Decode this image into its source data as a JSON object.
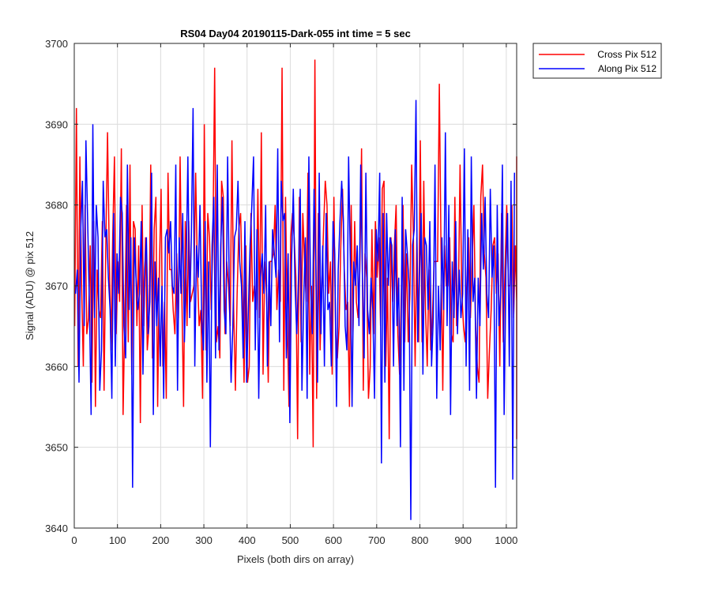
{
  "chart_data": {
    "type": "line",
    "title": "RS04 Day04 20190115-Dark-055 int time = 5 sec",
    "xlabel": "Pixels (both dirs on array)",
    "ylabel": "Signal (ADU) @ pix 512",
    "xlim": [
      0,
      1024
    ],
    "ylim": [
      3640,
      3700
    ],
    "xticks": [
      0,
      100,
      200,
      300,
      400,
      500,
      600,
      700,
      800,
      900,
      1000
    ],
    "yticks": [
      3640,
      3650,
      3660,
      3670,
      3680,
      3690,
      3700
    ],
    "grid": true,
    "legend_position": "outside-top-right",
    "series": [
      {
        "name": "Cross Pix 512",
        "color": "#ff0000",
        "x_start": 1,
        "x_step": 4,
        "values": [
          3665,
          3692,
          3660,
          3686,
          3670,
          3660,
          3680,
          3664,
          3666,
          3675,
          3658,
          3678,
          3655,
          3672,
          3667,
          3666,
          3678,
          3657,
          3675,
          3689,
          3674,
          3662,
          3676,
          3686,
          3664,
          3673,
          3668,
          3687,
          3654,
          3666,
          3680,
          3663,
          3685,
          3659,
          3678,
          3677,
          3665,
          3675,
          3653,
          3680,
          3665,
          3676,
          3662,
          3665,
          3685,
          3661,
          3677,
          3681,
          3655,
          3672,
          3682,
          3660,
          3668,
          3656,
          3684,
          3672,
          3672,
          3667,
          3664,
          3674,
          3666,
          3686,
          3669,
          3655,
          3678,
          3665,
          3678,
          3668,
          3669,
          3670,
          3684,
          3672,
          3665,
          3667,
          3656,
          3690,
          3662,
          3679,
          3676,
          3667,
          3676,
          3697,
          3663,
          3665,
          3661,
          3683,
          3681,
          3664,
          3673,
          3670,
          3665,
          3688,
          3667,
          3657,
          3669,
          3677,
          3679,
          3670,
          3658,
          3675,
          3658,
          3660,
          3679,
          3668,
          3670,
          3667,
          3682,
          3666,
          3689,
          3659,
          3673,
          3669,
          3658,
          3673,
          3673,
          3674,
          3680,
          3667,
          3672,
          3668,
          3697,
          3657,
          3681,
          3666,
          3655,
          3676,
          3679,
          3676,
          3671,
          3651,
          3681,
          3663,
          3679,
          3673,
          3668,
          3684,
          3659,
          3670,
          3650,
          3698,
          3656,
          3679,
          3662,
          3670,
          3677,
          3683,
          3680,
          3669,
          3673,
          3659,
          3681,
          3664,
          3661,
          3665,
          3675,
          3682,
          3672,
          3667,
          3668,
          3655,
          3680,
          3664,
          3678,
          3668,
          3666,
          3672,
          3687,
          3657,
          3674,
          3671,
          3656,
          3660,
          3677,
          3664,
          3678,
          3671,
          3676,
          3665,
          3682,
          3683,
          3660,
          3671,
          3651,
          3676,
          3668,
          3675,
          3680,
          3664,
          3659,
          3669,
          3680,
          3663,
          3674,
          3663,
          3669,
          3685,
          3676,
          3660,
          3676,
          3663,
          3688,
          3663,
          3683,
          3667,
          3660,
          3672,
          3662,
          3666,
          3673,
          3673,
          3673,
          3695,
          3674,
          3657,
          3675,
          3670,
          3670,
          3676,
          3664,
          3663,
          3681,
          3665,
          3668,
          3685,
          3669,
          3665,
          3663,
          3671,
          3676,
          3666,
          3673,
          3680,
          3665,
          3660,
          3658,
          3681,
          3685,
          3674,
          3671,
          3656,
          3662,
          3667,
          3675,
          3676,
          3669,
          3674,
          3660,
          3679,
          3663,
          3672,
          3680,
          3670,
          3670,
          3680,
          3666,
          3675,
          3668,
          3668,
          3680,
          3670,
          3667,
          3651,
          3671,
          3682,
          3666,
          3680,
          3677,
          3686,
          3657,
          3679,
          3662,
          3683,
          3655,
          3681,
          3654,
          3680,
          3672,
          3659,
          3686,
          3676,
          3685
        ]
      },
      {
        "name": "Along Pix 512",
        "color": "#0000ff",
        "x_start": 3,
        "x_step": 4,
        "values": [
          3669,
          3672,
          3658,
          3677,
          3683,
          3665,
          3688,
          3678,
          3668,
          3654,
          3690,
          3666,
          3680,
          3676,
          3657,
          3662,
          3683,
          3676,
          3677,
          3671,
          3667,
          3656,
          3679,
          3660,
          3674,
          3669,
          3681,
          3679,
          3665,
          3661,
          3685,
          3667,
          3676,
          3645,
          3676,
          3671,
          3667,
          3669,
          3678,
          3659,
          3672,
          3676,
          3664,
          3668,
          3684,
          3654,
          3673,
          3665,
          3671,
          3660,
          3670,
          3656,
          3676,
          3677,
          3674,
          3678,
          3670,
          3669,
          3685,
          3657,
          3676,
          3669,
          3679,
          3663,
          3672,
          3686,
          3666,
          3676,
          3692,
          3660,
          3675,
          3671,
          3680,
          3666,
          3662,
          3678,
          3658,
          3673,
          3650,
          3675,
          3681,
          3661,
          3685,
          3662,
          3675,
          3681,
          3667,
          3664,
          3686,
          3669,
          3658,
          3665,
          3676,
          3677,
          3683,
          3673,
          3670,
          3661,
          3678,
          3658,
          3667,
          3675,
          3680,
          3686,
          3662,
          3677,
          3656,
          3671,
          3674,
          3669,
          3680,
          3660,
          3673,
          3665,
          3677,
          3674,
          3671,
          3687,
          3663,
          3683,
          3678,
          3679,
          3661,
          3674,
          3653,
          3673,
          3682,
          3670,
          3664,
          3671,
          3682,
          3657,
          3668,
          3676,
          3656,
          3686,
          3670,
          3664,
          3682,
          3673,
          3658,
          3684,
          3664,
          3675,
          3660,
          3679,
          3667,
          3668,
          3660,
          3678,
          3674,
          3655,
          3672,
          3678,
          3683,
          3678,
          3665,
          3662,
          3686,
          3673,
          3655,
          3673,
          3670,
          3675,
          3665,
          3685,
          3671,
          3661,
          3684,
          3667,
          3664,
          3671,
          3667,
          3656,
          3677,
          3673,
          3684,
          3648,
          3679,
          3658,
          3679,
          3670,
          3676,
          3675,
          3660,
          3677,
          3665,
          3671,
          3650,
          3681,
          3657,
          3677,
          3674,
          3670,
          3641,
          3675,
          3677,
          3693,
          3663,
          3671,
          3679,
          3659,
          3676,
          3675,
          3667,
          3678,
          3660,
          3666,
          3685,
          3656,
          3670,
          3662,
          3676,
          3667,
          3689,
          3665,
          3680,
          3654,
          3673,
          3666,
          3678,
          3664,
          3672,
          3666,
          3669,
          3687,
          3660,
          3677,
          3657,
          3686,
          3668,
          3671,
          3656,
          3671,
          3665,
          3679,
          3672,
          3681,
          3669,
          3666,
          3682,
          3671,
          3675,
          3645,
          3680,
          3665,
          3669,
          3685,
          3654,
          3672,
          3679,
          3660,
          3683,
          3646,
          3684
        ]
      }
    ]
  }
}
